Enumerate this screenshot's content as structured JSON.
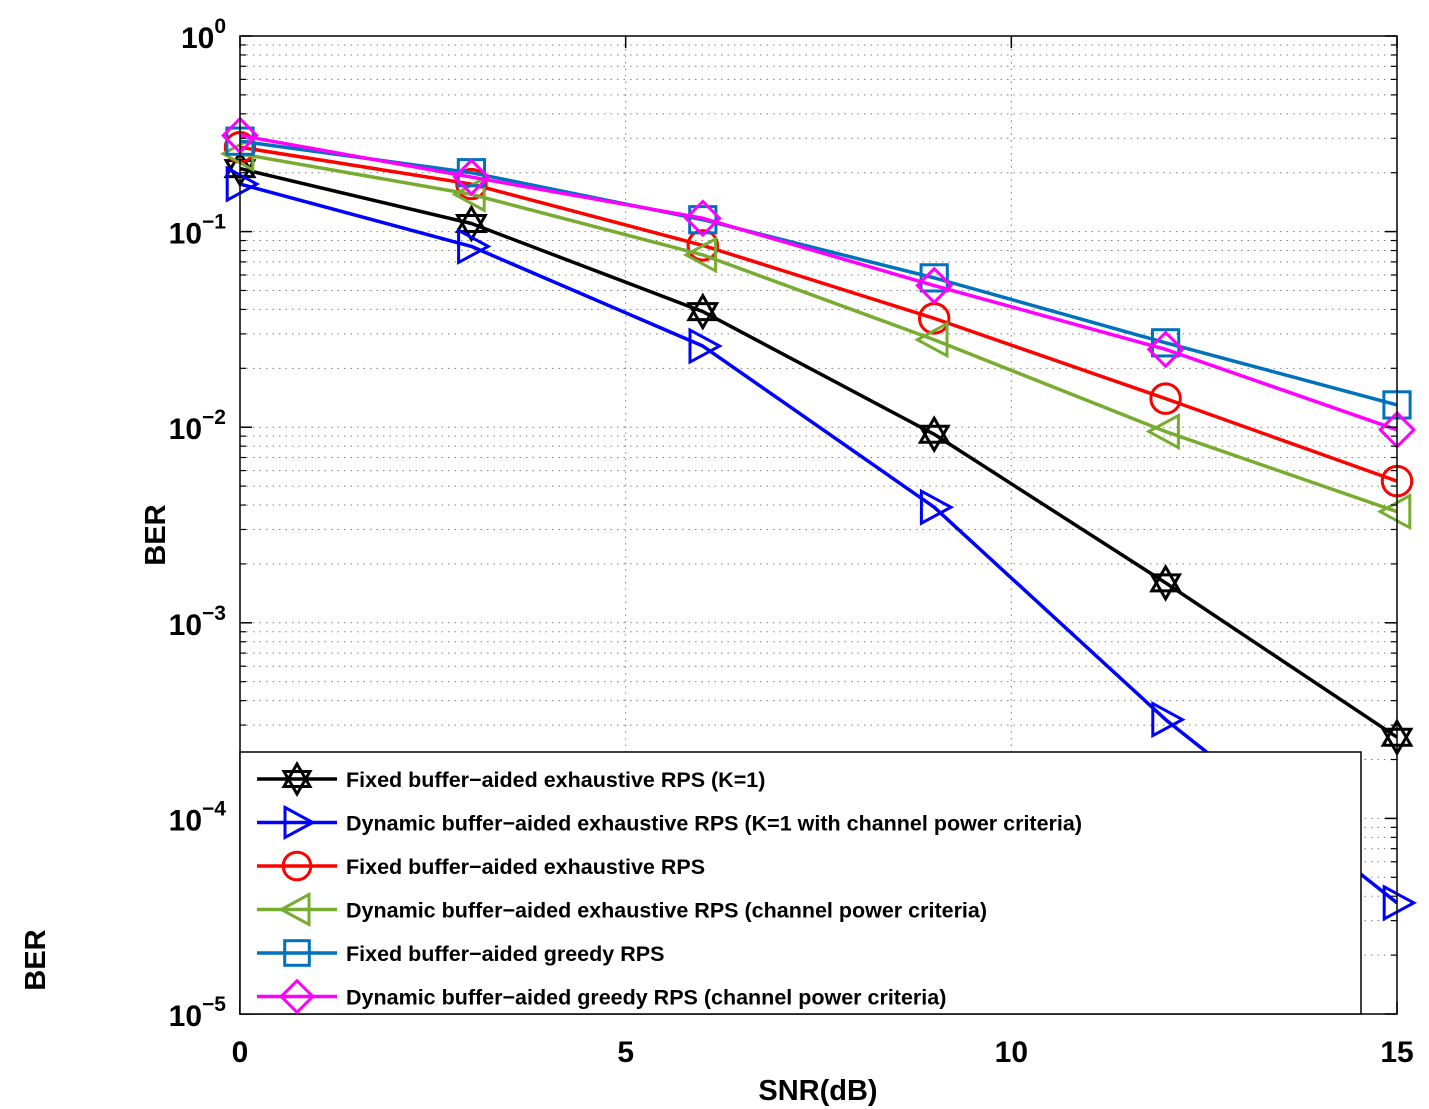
{
  "chart_data": {
    "type": "line",
    "xlabel": "SNR(dB)",
    "ylabel": "BER",
    "ylabel_outer": "BER",
    "xlim": [
      0,
      15
    ],
    "ylim": [
      1e-05,
      1
    ],
    "yscale": "log",
    "grid": true,
    "legend_position": "bottom-left",
    "x_ticks": [
      {
        "value": 0,
        "label": "0"
      },
      {
        "value": 5,
        "label": "5"
      },
      {
        "value": 10,
        "label": "10"
      },
      {
        "value": 15,
        "label": "15"
      }
    ],
    "y_ticks": [
      {
        "value": 1,
        "base": "10",
        "exp": "0"
      },
      {
        "value": 0.1,
        "base": "10",
        "exp": "−1"
      },
      {
        "value": 0.01,
        "base": "10",
        "exp": "−2"
      },
      {
        "value": 0.001,
        "base": "10",
        "exp": "−3"
      },
      {
        "value": 0.0001,
        "base": "10",
        "exp": "−4"
      },
      {
        "value": 1e-05,
        "base": "10",
        "exp": "−5"
      }
    ],
    "x": [
      0,
      3,
      6,
      9,
      12,
      15
    ],
    "series": [
      {
        "name": "Fixed buffer−aided exhaustive RPS (K=1)",
        "color": "#000000",
        "marker": "hexagram",
        "values": [
          0.21,
          0.11,
          0.039,
          0.0092,
          0.0016,
          0.00026
        ]
      },
      {
        "name": "Dynamic buffer−aided exhaustive RPS (K=1 with channel power criteria)",
        "color": "#0000ff",
        "marker": "triangle-right",
        "values": [
          0.175,
          0.084,
          0.026,
          0.0039,
          0.00032,
          3.7e-05
        ]
      },
      {
        "name": "Fixed buffer−aided exhaustive RPS",
        "color": "#ff0000",
        "marker": "circle",
        "values": [
          0.27,
          0.175,
          0.085,
          0.036,
          0.014,
          0.0053
        ]
      },
      {
        "name": "Dynamic buffer−aided exhaustive RPS (channel power criteria)",
        "color": "#77ac30",
        "marker": "triangle-left",
        "values": [
          0.25,
          0.155,
          0.076,
          0.028,
          0.0095,
          0.0037
        ]
      },
      {
        "name": "Fixed buffer−aided greedy RPS",
        "color": "#0072bd",
        "marker": "square",
        "values": [
          0.29,
          0.2,
          0.115,
          0.058,
          0.027,
          0.013
        ]
      },
      {
        "name": "Dynamic buffer−aided greedy RPS (channel power criteria)",
        "color": "#ff00ff",
        "marker": "diamond",
        "values": [
          0.31,
          0.19,
          0.117,
          0.053,
          0.025,
          0.0097
        ]
      }
    ]
  }
}
